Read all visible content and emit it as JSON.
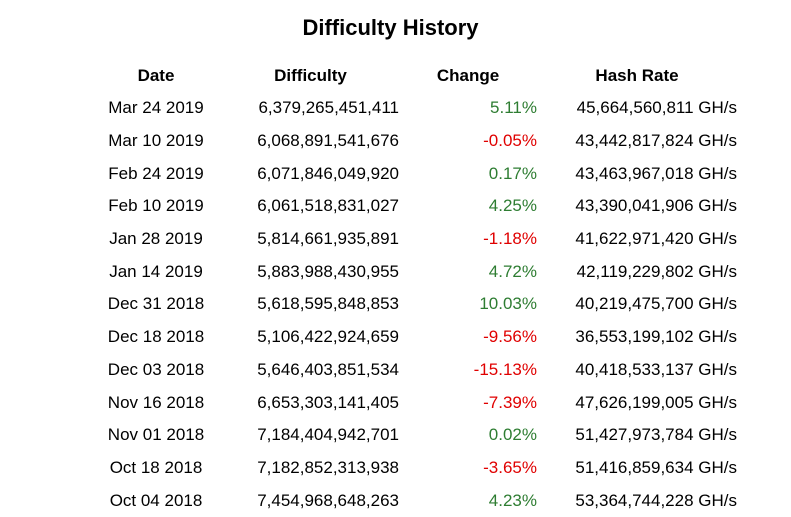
{
  "title": "Difficulty History",
  "colors": {
    "positive": "#2e7d32",
    "negative": "#e00000"
  },
  "columns": {
    "date": "Date",
    "difficulty": "Difficulty",
    "change": "Change",
    "hash_rate": "Hash Rate"
  },
  "rows": [
    {
      "date": "Mar 24 2019",
      "difficulty": "6,379,265,451,411",
      "change": "5.11%",
      "hash_rate": "45,664,560,811 GH/s"
    },
    {
      "date": "Mar 10 2019",
      "difficulty": "6,068,891,541,676",
      "change": "-0.05%",
      "hash_rate": "43,442,817,824 GH/s"
    },
    {
      "date": "Feb 24 2019",
      "difficulty": "6,071,846,049,920",
      "change": "0.17%",
      "hash_rate": "43,463,967,018 GH/s"
    },
    {
      "date": "Feb 10 2019",
      "difficulty": "6,061,518,831,027",
      "change": "4.25%",
      "hash_rate": "43,390,041,906 GH/s"
    },
    {
      "date": "Jan 28 2019",
      "difficulty": "5,814,661,935,891",
      "change": "-1.18%",
      "hash_rate": "41,622,971,420 GH/s"
    },
    {
      "date": "Jan 14 2019",
      "difficulty": "5,883,988,430,955",
      "change": "4.72%",
      "hash_rate": "42,119,229,802 GH/s"
    },
    {
      "date": "Dec 31 2018",
      "difficulty": "5,618,595,848,853",
      "change": "10.03%",
      "hash_rate": "40,219,475,700 GH/s"
    },
    {
      "date": "Dec 18 2018",
      "difficulty": "5,106,422,924,659",
      "change": "-9.56%",
      "hash_rate": "36,553,199,102 GH/s"
    },
    {
      "date": "Dec 03 2018",
      "difficulty": "5,646,403,851,534",
      "change": "-15.13%",
      "hash_rate": "40,418,533,137 GH/s"
    },
    {
      "date": "Nov 16 2018",
      "difficulty": "6,653,303,141,405",
      "change": "-7.39%",
      "hash_rate": "47,626,199,005 GH/s"
    },
    {
      "date": "Nov 01 2018",
      "difficulty": "7,184,404,942,701",
      "change": "0.02%",
      "hash_rate": "51,427,973,784 GH/s"
    },
    {
      "date": "Oct 18 2018",
      "difficulty": "7,182,852,313,938",
      "change": "-3.65%",
      "hash_rate": "51,416,859,634 GH/s"
    },
    {
      "date": "Oct 04 2018",
      "difficulty": "7,454,968,648,263",
      "change": "4.23%",
      "hash_rate": "53,364,744,228 GH/s"
    }
  ]
}
